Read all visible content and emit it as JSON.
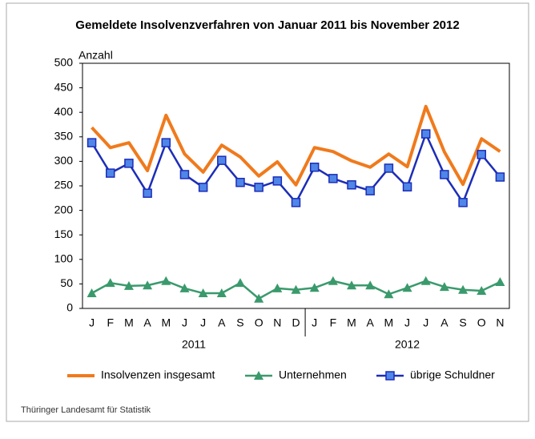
{
  "chart_data": {
    "type": "line",
    "title": "Gemeldete Insolvenzverfahren von Januar 2011 bis November 2012",
    "y_label": "Anzahl",
    "groups": [
      {
        "label": "2011",
        "categories": [
          "J",
          "F",
          "M",
          "A",
          "M",
          "J",
          "J",
          "A",
          "S",
          "O",
          "N",
          "D"
        ]
      },
      {
        "label": "2012",
        "categories": [
          "J",
          "F",
          "M",
          "A",
          "M",
          "J",
          "J",
          "A",
          "S",
          "O",
          "N"
        ]
      }
    ],
    "ylim": [
      0,
      500
    ],
    "yticks": [
      0,
      50,
      100,
      150,
      200,
      250,
      300,
      350,
      400,
      450,
      500
    ],
    "grid": false,
    "series": [
      {
        "name": "Insolvenzen insgesamt",
        "color": "#f07a1c",
        "marker": "none",
        "values": [
          369,
          328,
          338,
          281,
          394,
          315,
          278,
          333,
          309,
          270,
          299,
          252,
          328,
          320,
          301,
          288,
          315,
          289,
          412,
          319,
          253,
          346,
          320
        ]
      },
      {
        "name": "Unternehmen",
        "color": "#3a9a6c",
        "marker": "triangle",
        "values": [
          31,
          52,
          46,
          47,
          56,
          41,
          31,
          31,
          52,
          20,
          41,
          38,
          42,
          56,
          47,
          47,
          29,
          42,
          56,
          44,
          38,
          36,
          54
        ]
      },
      {
        "name": "übrige Schuldner",
        "color": "#1c2db8",
        "marker": "square",
        "values": [
          338,
          276,
          296,
          235,
          338,
          273,
          247,
          302,
          257,
          247,
          260,
          216,
          288,
          265,
          252,
          240,
          286,
          248,
          356,
          273,
          216,
          314,
          268
        ]
      }
    ],
    "source": "Thüringer Landesamt für Statistik"
  }
}
